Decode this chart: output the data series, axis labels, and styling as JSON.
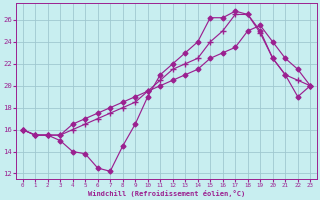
{
  "background_color": "#c8eef0",
  "grid_color": "#a0c8d0",
  "line_color": "#9b2090",
  "xlabel": "Windchill (Refroidissement éolien,°C)",
  "xlim": [
    -0.5,
    23.5
  ],
  "ylim": [
    11.5,
    27.5
  ],
  "yticks": [
    12,
    14,
    16,
    18,
    20,
    22,
    24,
    26
  ],
  "xticks": [
    0,
    1,
    2,
    3,
    4,
    5,
    6,
    7,
    8,
    9,
    10,
    11,
    12,
    13,
    14,
    15,
    16,
    17,
    18,
    19,
    20,
    21,
    22,
    23
  ],
  "series1_x": [
    0,
    1,
    2,
    3,
    4,
    5,
    6,
    7,
    8,
    9,
    10,
    11,
    12,
    13,
    14,
    15,
    16,
    17,
    18,
    19,
    20,
    21,
    22,
    23
  ],
  "series1_y": [
    16.0,
    15.5,
    15.5,
    15.0,
    14.0,
    13.8,
    12.5,
    12.2,
    14.5,
    16.5,
    19.0,
    21.0,
    22.0,
    23.0,
    24.0,
    26.2,
    26.2,
    26.8,
    26.5,
    25.0,
    22.5,
    21.0,
    19.0,
    20.0
  ],
  "series2_x": [
    0,
    1,
    2,
    3,
    4,
    5,
    6,
    7,
    8,
    9,
    10,
    11,
    12,
    13,
    14,
    15,
    16,
    17,
    18,
    19,
    20,
    21,
    22,
    23
  ],
  "series2_y": [
    16.0,
    15.5,
    15.5,
    15.5,
    16.0,
    16.5,
    17.0,
    17.5,
    18.0,
    18.5,
    19.5,
    20.5,
    21.5,
    22.0,
    22.5,
    24.0,
    25.0,
    26.5,
    26.5,
    24.8,
    22.5,
    21.0,
    20.5,
    20.0
  ],
  "series3_x": [
    0,
    1,
    2,
    3,
    4,
    5,
    6,
    7,
    8,
    9,
    10,
    11,
    12,
    13,
    14,
    15,
    16,
    17,
    18,
    19,
    20,
    21,
    22,
    23
  ],
  "series3_y": [
    16.0,
    15.5,
    15.5,
    15.5,
    16.5,
    17.0,
    17.5,
    18.0,
    18.5,
    19.0,
    19.5,
    20.0,
    20.5,
    21.0,
    21.5,
    22.5,
    23.0,
    23.5,
    25.0,
    25.5,
    24.0,
    22.5,
    21.5,
    20.0
  ]
}
